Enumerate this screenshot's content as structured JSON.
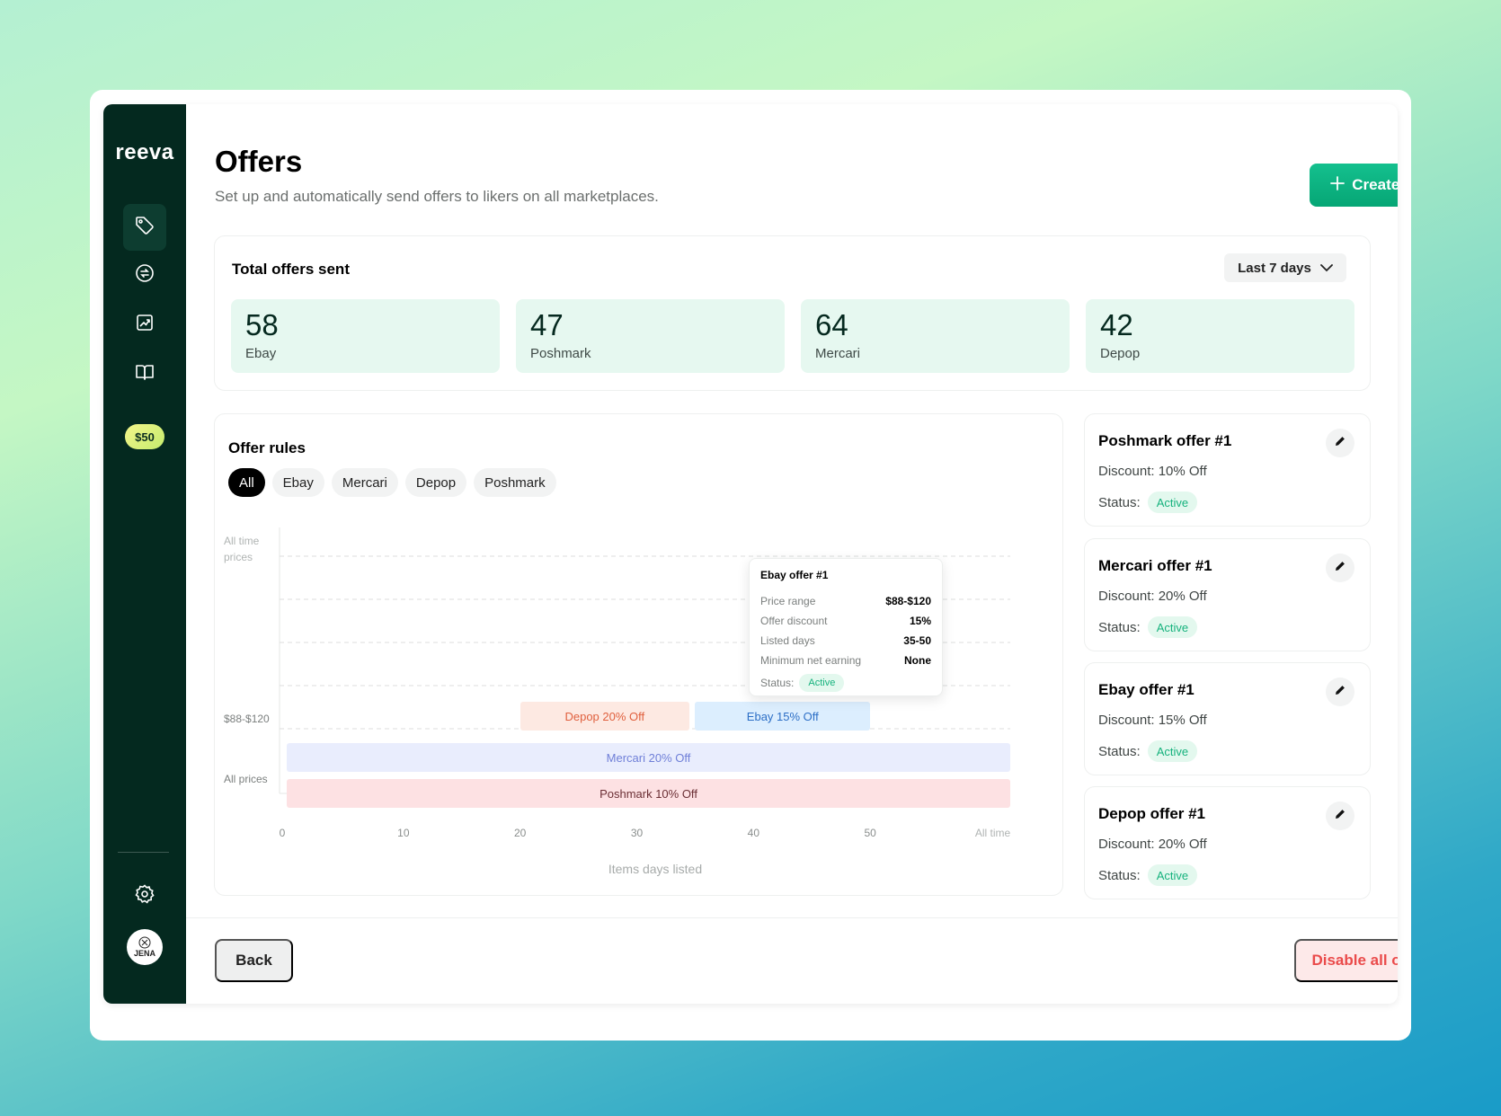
{
  "app": {
    "logo": "reeva",
    "credits": "$50",
    "user_initials": "JENA"
  },
  "sidebar": {
    "items": [
      {
        "icon": "tag-icon",
        "active": true
      },
      {
        "icon": "sync-icon",
        "active": false
      },
      {
        "icon": "chart-icon",
        "active": false
      },
      {
        "icon": "book-icon",
        "active": false
      }
    ],
    "settings_icon": "gear-icon"
  },
  "header": {
    "title": "Offers",
    "subtitle": "Set up and automatically send offers to likers on all marketplaces.",
    "create_label": "Create offer"
  },
  "stats": {
    "title": "Total offers sent",
    "range": "Last 7 days",
    "tiles": [
      {
        "value": "58",
        "label": "Ebay"
      },
      {
        "value": "47",
        "label": "Poshmark"
      },
      {
        "value": "64",
        "label": "Mercari"
      },
      {
        "value": "42",
        "label": "Depop"
      }
    ]
  },
  "rules": {
    "title": "Offer rules",
    "filters": [
      "All",
      "Ebay",
      "Mercari",
      "Depop",
      "Poshmark"
    ],
    "selected_filter": "All"
  },
  "chart_data": {
    "type": "gantt",
    "xlabel": "Items days listed",
    "x_ticks": [
      "0",
      "10",
      "20",
      "30",
      "40",
      "50",
      "All time"
    ],
    "xlim": [
      0,
      62
    ],
    "y_labels": [
      {
        "text": "All time\nprices",
        "row": "top"
      },
      {
        "text": "$88-$120",
        "row": "price-88-120"
      },
      {
        "text": "All prices",
        "row": "all-prices"
      }
    ],
    "bars": [
      {
        "label": "Depop 20% Off",
        "row": "price-88-120",
        "x_start": 20,
        "x_end": 34.5,
        "color": "#fde9e2",
        "text_color": "#e0603e"
      },
      {
        "label": "Ebay 15% Off",
        "row": "price-88-120",
        "x_start": 35,
        "x_end": 50,
        "color": "#dceefe",
        "text_color": "#2d6fc6"
      },
      {
        "label": "Mercari 20% Off",
        "row": "all-prices-1",
        "x_start": 0,
        "x_end": 62,
        "color": "#e9edfd",
        "text_color": "#6f7fd8"
      },
      {
        "label": "Poshmark 10% Off",
        "row": "all-prices-2",
        "x_start": 0,
        "x_end": 62,
        "color": "#fde1e3",
        "text_color": "#6b2e34"
      }
    ],
    "tooltip": {
      "title": "Ebay offer #1",
      "rows": [
        {
          "key": "Price range",
          "value": "$88-$120"
        },
        {
          "key": "Offer discount",
          "value": "15%"
        },
        {
          "key": "Listed days",
          "value": "35-50"
        },
        {
          "key": "Minimum net earning",
          "value": "None"
        }
      ],
      "status_label": "Status:",
      "status": "Active"
    }
  },
  "offers": [
    {
      "title": "Poshmark offer #1",
      "discount": "Discount: 10% Off",
      "status_label": "Status:",
      "status": "Active"
    },
    {
      "title": "Mercari offer #1",
      "discount": "Discount: 20% Off",
      "status_label": "Status:",
      "status": "Active"
    },
    {
      "title": "Ebay offer #1",
      "discount": "Discount: 15% Off",
      "status_label": "Status:",
      "status": "Active"
    },
    {
      "title": "Depop offer #1",
      "discount": "Discount: 20% Off",
      "status_label": "Status:",
      "status": "Active"
    }
  ],
  "footer": {
    "back_label": "Back",
    "disable_label": "Disable all offers"
  },
  "colors": {
    "sidebar": "#04291f",
    "accent": "#0bb583",
    "danger": "#ea4b4b"
  }
}
